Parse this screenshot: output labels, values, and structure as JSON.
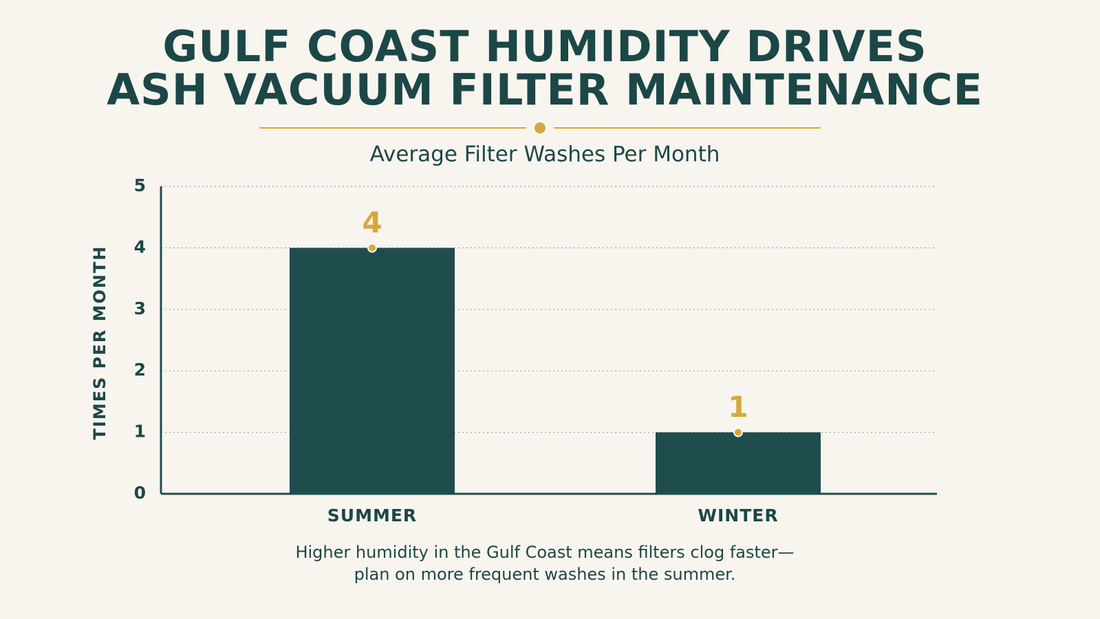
{
  "chart_data": {
    "type": "bar",
    "title": [
      "GULF COAST HUMIDITY DRIVES",
      "ASH VACUUM FILTER MAINTENANCE"
    ],
    "subtitle": "Average Filter Washes Per Month",
    "y_label": "TIMES PER MONTH",
    "categories": [
      "SUMMER",
      "WINTER"
    ],
    "values": [
      4,
      1
    ],
    "color": "#1f4d4e",
    "label_color": "#d6a83c",
    "ylim": [
      0,
      5
    ],
    "yticks": [
      0,
      1,
      2,
      3,
      4,
      5
    ],
    "grid": true,
    "annotation": [
      "Higher humidity in the Gulf Coast means filters clog faster—",
      "plan on more frequent washes in the summer."
    ]
  }
}
